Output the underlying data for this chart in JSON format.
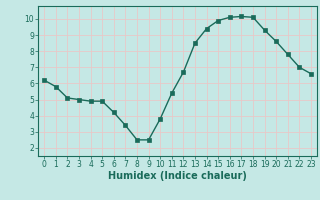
{
  "x": [
    0,
    1,
    2,
    3,
    4,
    5,
    6,
    7,
    8,
    9,
    10,
    11,
    12,
    13,
    14,
    15,
    16,
    17,
    18,
    19,
    20,
    21,
    22,
    23
  ],
  "y": [
    6.2,
    5.8,
    5.1,
    5.0,
    4.9,
    4.9,
    4.2,
    3.4,
    2.5,
    2.5,
    3.8,
    5.4,
    6.7,
    8.5,
    9.4,
    9.9,
    10.1,
    10.15,
    10.1,
    9.3,
    8.6,
    7.8,
    7.0,
    6.6
  ],
  "line_color": "#1a6b5a",
  "marker": "s",
  "markersize": 2.5,
  "linewidth": 1.0,
  "bg_color": "#c5e8e5",
  "grid_color": "#e8c8c8",
  "xlabel": "Humidex (Indice chaleur)",
  "xlim": [
    -0.5,
    23.5
  ],
  "ylim": [
    1.5,
    10.8
  ],
  "yticks": [
    2,
    3,
    4,
    5,
    6,
    7,
    8,
    9,
    10
  ],
  "xticks": [
    0,
    1,
    2,
    3,
    4,
    5,
    6,
    7,
    8,
    9,
    10,
    11,
    12,
    13,
    14,
    15,
    16,
    17,
    18,
    19,
    20,
    21,
    22,
    23
  ],
  "tick_fontsize": 5.5,
  "xlabel_fontsize": 7.0,
  "label_color": "#1a6b5a"
}
